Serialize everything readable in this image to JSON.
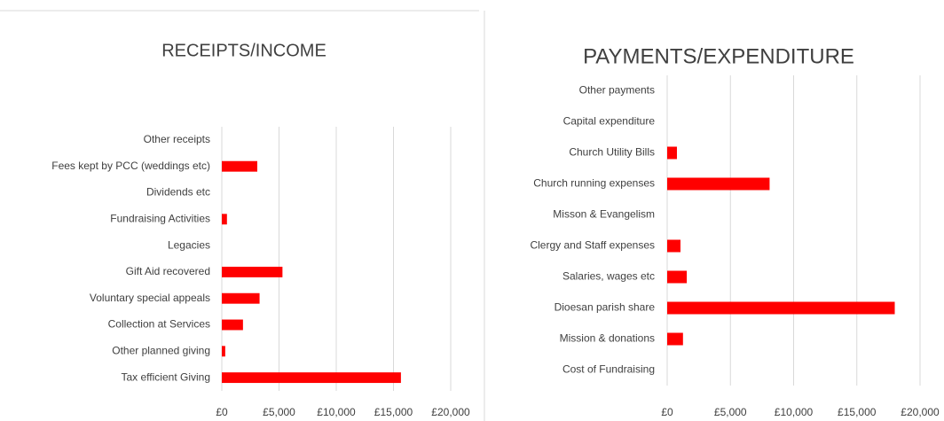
{
  "chart_data": [
    {
      "type": "bar",
      "orientation": "horizontal",
      "title": "RECEIPTS/INCOME",
      "color": "#ff0000",
      "grid": true,
      "categories": [
        "Other receipts",
        "Fees kept by PCC (weddings etc)",
        "Dividends etc",
        "Fundraising Activities",
        "Legacies",
        "Gift Aid recovered",
        "Voluntary special appeals",
        "Collection at Services",
        "Other planned giving",
        "Tax efficient Giving"
      ],
      "values": [
        0,
        3100,
        0,
        450,
        0,
        5300,
        3300,
        1850,
        300,
        15650
      ],
      "xlim": [
        0,
        20000
      ],
      "xticks": [
        {
          "value": 0,
          "label": "£0"
        },
        {
          "value": 5000,
          "label": "£5,000"
        },
        {
          "value": 10000,
          "label": "£10,000"
        },
        {
          "value": 15000,
          "label": "£15,000"
        },
        {
          "value": 20000,
          "label": "£20,000"
        }
      ]
    },
    {
      "type": "bar",
      "orientation": "horizontal",
      "title": "PAYMENTS/EXPENDITURE",
      "color": "#ff0000",
      "grid": true,
      "categories": [
        "Other payments",
        "Capital expenditure",
        "Church Utility Bills",
        "Church running expenses",
        "Misson & Evangelism",
        "Clergy and Staff expenses",
        "Salaries, wages etc",
        "Dioesan parish share",
        "Mission & donations",
        "Cost of Fundraising"
      ],
      "values": [
        0,
        0,
        770,
        8100,
        0,
        1050,
        1550,
        18000,
        1250,
        0
      ],
      "xlim": [
        0,
        20000
      ],
      "xticks": [
        {
          "value": 0,
          "label": "£0"
        },
        {
          "value": 5000,
          "label": "£5,000"
        },
        {
          "value": 10000,
          "label": "£10,000"
        },
        {
          "value": 15000,
          "label": "£15,000"
        },
        {
          "value": 20000,
          "label": "£20,000"
        }
      ]
    }
  ]
}
